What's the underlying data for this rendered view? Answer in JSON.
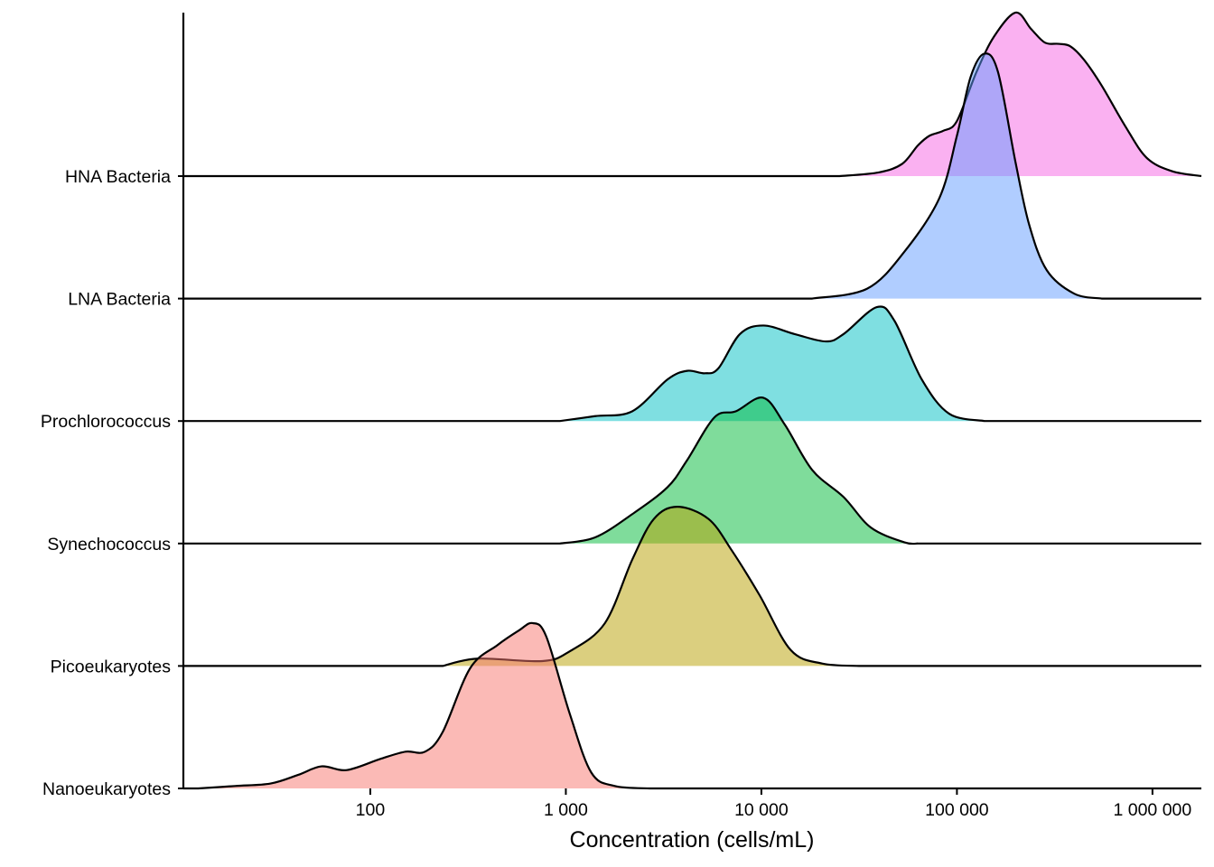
{
  "chart_data": {
    "type": "ridgeline",
    "title": "",
    "xlabel": "Concentration (cells/mL)",
    "ylabel": "",
    "x_scale": "log10",
    "xlim_log10": [
      1.044,
      6.25
    ],
    "x_ticks": [
      {
        "log10": 2,
        "label": "100"
      },
      {
        "log10": 3,
        "label": "1 000"
      },
      {
        "log10": 4,
        "label": "10 000"
      },
      {
        "log10": 5,
        "label": "100 000"
      },
      {
        "log10": 6,
        "label": "1 000 000"
      }
    ],
    "height_unit": "ridge spacing",
    "grid": false,
    "fill_alpha": 0.5,
    "series": [
      {
        "name": "HNA Bacteria",
        "color": "#F564E3",
        "density": [
          [
            4.4,
            0
          ],
          [
            4.6,
            0.03
          ],
          [
            4.72,
            0.1
          ],
          [
            4.8,
            0.25
          ],
          [
            4.86,
            0.33
          ],
          [
            4.93,
            0.37
          ],
          [
            5.0,
            0.45
          ],
          [
            5.1,
            0.85
          ],
          [
            5.19,
            1.14
          ],
          [
            5.3,
            1.335
          ],
          [
            5.38,
            1.2
          ],
          [
            5.45,
            1.09
          ],
          [
            5.52,
            1.08
          ],
          [
            5.58,
            1.06
          ],
          [
            5.65,
            0.95
          ],
          [
            5.74,
            0.74
          ],
          [
            5.86,
            0.41
          ],
          [
            5.97,
            0.15
          ],
          [
            6.1,
            0.04
          ],
          [
            6.25,
            0
          ]
        ]
      },
      {
        "name": "LNA Bacteria",
        "color": "#619CFF",
        "density": [
          [
            4.26,
            0
          ],
          [
            4.54,
            0.08
          ],
          [
            4.73,
            0.38
          ],
          [
            4.91,
            0.82
          ],
          [
            5.0,
            1.33
          ],
          [
            5.07,
            1.81
          ],
          [
            5.14,
            2.0
          ],
          [
            5.21,
            1.85
          ],
          [
            5.3,
            1.11
          ],
          [
            5.37,
            0.6
          ],
          [
            5.46,
            0.23
          ],
          [
            5.6,
            0.04
          ],
          [
            5.74,
            0
          ]
        ]
      },
      {
        "name": "Prochlorococcus",
        "color": "#00BFC4",
        "density": [
          [
            2.97,
            0
          ],
          [
            3.15,
            0.04
          ],
          [
            3.34,
            0.08
          ],
          [
            3.52,
            0.34
          ],
          [
            3.62,
            0.41
          ],
          [
            3.71,
            0.39
          ],
          [
            3.78,
            0.43
          ],
          [
            3.89,
            0.71
          ],
          [
            4.01,
            0.78
          ],
          [
            4.17,
            0.71
          ],
          [
            4.33,
            0.65
          ],
          [
            4.42,
            0.71
          ],
          [
            4.59,
            0.93
          ],
          [
            4.68,
            0.82
          ],
          [
            4.82,
            0.34
          ],
          [
            4.96,
            0.06
          ],
          [
            5.14,
            0
          ]
        ]
      },
      {
        "name": "Synechococcus",
        "color": "#00BA38",
        "density": [
          [
            2.97,
            0
          ],
          [
            3.15,
            0.05
          ],
          [
            3.34,
            0.24
          ],
          [
            3.52,
            0.46
          ],
          [
            3.62,
            0.68
          ],
          [
            3.76,
            1.03
          ],
          [
            3.87,
            1.08
          ],
          [
            4.01,
            1.19
          ],
          [
            4.12,
            0.97
          ],
          [
            4.26,
            0.6
          ],
          [
            4.42,
            0.38
          ],
          [
            4.56,
            0.13
          ],
          [
            4.73,
            0.01
          ],
          [
            4.8,
            0
          ]
        ]
      },
      {
        "name": "Picoeukaryotes",
        "color": "#B79F00",
        "density": [
          [
            2.37,
            0
          ],
          [
            2.55,
            0.06
          ],
          [
            2.88,
            0.04
          ],
          [
            3.02,
            0.12
          ],
          [
            3.2,
            0.35
          ],
          [
            3.34,
            0.87
          ],
          [
            3.45,
            1.2
          ],
          [
            3.57,
            1.3
          ],
          [
            3.73,
            1.2
          ],
          [
            3.85,
            0.94
          ],
          [
            3.99,
            0.58
          ],
          [
            4.15,
            0.13
          ],
          [
            4.31,
            0.02
          ],
          [
            4.5,
            0
          ]
        ]
      },
      {
        "name": "Nanoeukaryotes",
        "color": "#F8766D",
        "density": [
          [
            1.12,
            0
          ],
          [
            1.31,
            0.02
          ],
          [
            1.49,
            0.04
          ],
          [
            1.63,
            0.11
          ],
          [
            1.75,
            0.18
          ],
          [
            1.88,
            0.15
          ],
          [
            2.05,
            0.24
          ],
          [
            2.18,
            0.3
          ],
          [
            2.28,
            0.3
          ],
          [
            2.37,
            0.46
          ],
          [
            2.51,
            0.98
          ],
          [
            2.65,
            1.17
          ],
          [
            2.76,
            1.29
          ],
          [
            2.83,
            1.35
          ],
          [
            2.9,
            1.24
          ],
          [
            3.02,
            0.61
          ],
          [
            3.13,
            0.13
          ],
          [
            3.25,
            0.02
          ],
          [
            3.43,
            0
          ]
        ]
      }
    ]
  }
}
